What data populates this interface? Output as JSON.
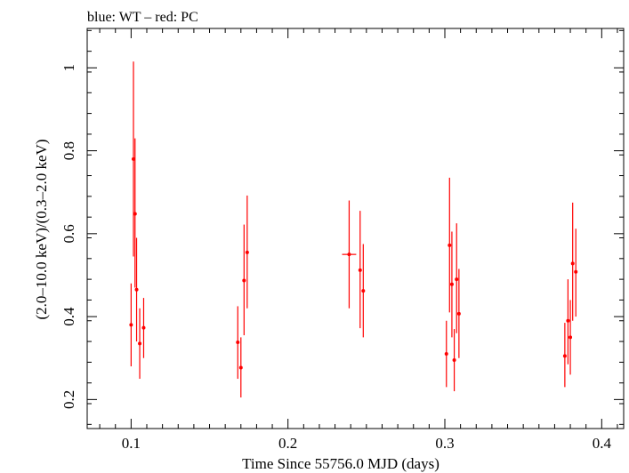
{
  "chart_data": {
    "type": "scatter",
    "title": "blue: WT – red: PC",
    "xlabel": "Time Since 55756.0 MJD (days)",
    "ylabel": "(2.0–10.0 keV)/(0.3–2.0 keV)",
    "xlim": [
      0.072,
      0.414
    ],
    "ylim": [
      0.13,
      1.095
    ],
    "x_ticks": [
      0.1,
      0.2,
      0.3,
      0.4
    ],
    "x_tick_labels": [
      "0.1",
      "0.2",
      "0.3",
      "0.4"
    ],
    "y_ticks": [
      0.2,
      0.4,
      0.6,
      0.8,
      1.0
    ],
    "y_tick_labels": [
      "0.2",
      "0.4",
      "0.6",
      "0.8",
      "1"
    ],
    "grid": false,
    "series": [
      {
        "name": "PC",
        "color": "#ff0000",
        "points": [
          {
            "x": 0.1,
            "y": 0.38,
            "ylo": 0.28,
            "yhi": 0.48,
            "xerr": 0.0
          },
          {
            "x": 0.1015,
            "y": 0.78,
            "ylo": 0.545,
            "yhi": 1.015,
            "xerr": 0.0
          },
          {
            "x": 0.1025,
            "y": 0.648,
            "ylo": 0.47,
            "yhi": 0.83,
            "xerr": 0.0
          },
          {
            "x": 0.1035,
            "y": 0.465,
            "ylo": 0.34,
            "yhi": 0.59,
            "xerr": 0.0
          },
          {
            "x": 0.1055,
            "y": 0.335,
            "ylo": 0.25,
            "yhi": 0.42,
            "xerr": 0.0
          },
          {
            "x": 0.108,
            "y": 0.373,
            "ylo": 0.3,
            "yhi": 0.445,
            "xerr": 0.0
          },
          {
            "x": 0.168,
            "y": 0.338,
            "ylo": 0.25,
            "yhi": 0.425,
            "xerr": 0.0
          },
          {
            "x": 0.17,
            "y": 0.277,
            "ylo": 0.205,
            "yhi": 0.35,
            "xerr": 0.0
          },
          {
            "x": 0.172,
            "y": 0.487,
            "ylo": 0.355,
            "yhi": 0.622,
            "xerr": 0.0
          },
          {
            "x": 0.174,
            "y": 0.555,
            "ylo": 0.42,
            "yhi": 0.692,
            "xerr": 0.0
          },
          {
            "x": 0.239,
            "y": 0.55,
            "ylo": 0.42,
            "yhi": 0.68,
            "xerr": 0.0045
          },
          {
            "x": 0.246,
            "y": 0.512,
            "ylo": 0.372,
            "yhi": 0.655,
            "xerr": 0.0
          },
          {
            "x": 0.248,
            "y": 0.462,
            "ylo": 0.35,
            "yhi": 0.575,
            "xerr": 0.0
          },
          {
            "x": 0.301,
            "y": 0.31,
            "ylo": 0.23,
            "yhi": 0.39,
            "xerr": 0.0
          },
          {
            "x": 0.303,
            "y": 0.572,
            "ylo": 0.41,
            "yhi": 0.735,
            "xerr": 0.0
          },
          {
            "x": 0.3045,
            "y": 0.478,
            "ylo": 0.35,
            "yhi": 0.605,
            "xerr": 0.0
          },
          {
            "x": 0.306,
            "y": 0.295,
            "ylo": 0.22,
            "yhi": 0.37,
            "xerr": 0.0
          },
          {
            "x": 0.3075,
            "y": 0.49,
            "ylo": 0.36,
            "yhi": 0.625,
            "xerr": 0.0
          },
          {
            "x": 0.309,
            "y": 0.407,
            "ylo": 0.3,
            "yhi": 0.515,
            "xerr": 0.0
          },
          {
            "x": 0.3765,
            "y": 0.305,
            "ylo": 0.23,
            "yhi": 0.385,
            "xerr": 0.0
          },
          {
            "x": 0.3785,
            "y": 0.39,
            "ylo": 0.285,
            "yhi": 0.49,
            "xerr": 0.0
          },
          {
            "x": 0.38,
            "y": 0.35,
            "ylo": 0.26,
            "yhi": 0.44,
            "xerr": 0.0
          },
          {
            "x": 0.3815,
            "y": 0.528,
            "ylo": 0.39,
            "yhi": 0.675,
            "xerr": 0.0
          },
          {
            "x": 0.3835,
            "y": 0.508,
            "ylo": 0.4,
            "yhi": 0.612,
            "xerr": 0.0
          }
        ]
      }
    ]
  }
}
